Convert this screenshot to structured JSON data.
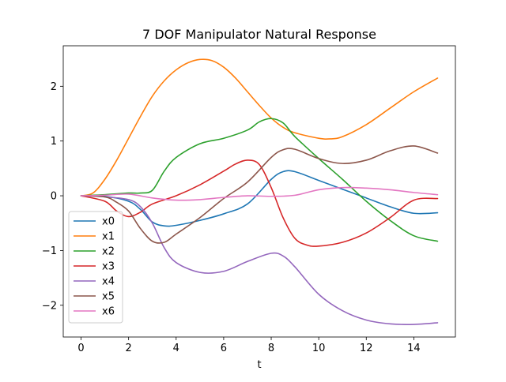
{
  "chart_data": {
    "type": "line",
    "title": "7 DOF Manipulator Natural Response",
    "xlabel": "t",
    "ylabel": "",
    "xlim": [
      -0.75,
      15.75
    ],
    "ylim": [
      -2.58,
      2.74
    ],
    "xticks": [
      0,
      2,
      4,
      6,
      8,
      10,
      12,
      14
    ],
    "yticks": [
      -2,
      -1,
      0,
      1,
      2
    ],
    "xtick_labels": [
      "0",
      "2",
      "4",
      "6",
      "8",
      "10",
      "12",
      "14"
    ],
    "ytick_labels": [
      "−2",
      "−1",
      "0",
      "1",
      "2"
    ],
    "grid": false,
    "legend_location": "lower-left",
    "series": [
      {
        "name": "x0",
        "color": "#1f77b4",
        "points": [
          [
            0,
            0
          ],
          [
            1,
            -0.01
          ],
          [
            2,
            -0.1
          ],
          [
            2.5,
            -0.25
          ],
          [
            3,
            -0.48
          ],
          [
            3.5,
            -0.55
          ],
          [
            4,
            -0.54
          ],
          [
            5,
            -0.45
          ],
          [
            6,
            -0.33
          ],
          [
            7,
            -0.15
          ],
          [
            8,
            0.3
          ],
          [
            8.5,
            0.44
          ],
          [
            9,
            0.44
          ],
          [
            10,
            0.28
          ],
          [
            11,
            0.12
          ],
          [
            12,
            -0.04
          ],
          [
            13,
            -0.2
          ],
          [
            14,
            -0.32
          ],
          [
            15,
            -0.31
          ]
        ]
      },
      {
        "name": "x1",
        "color": "#ff7f0e",
        "points": [
          [
            0,
            0
          ],
          [
            0.5,
            0.05
          ],
          [
            1,
            0.3
          ],
          [
            1.5,
            0.65
          ],
          [
            2,
            1.05
          ],
          [
            2.5,
            1.45
          ],
          [
            3,
            1.82
          ],
          [
            3.5,
            2.1
          ],
          [
            4,
            2.3
          ],
          [
            4.5,
            2.43
          ],
          [
            5,
            2.49
          ],
          [
            5.5,
            2.47
          ],
          [
            6,
            2.35
          ],
          [
            6.5,
            2.15
          ],
          [
            7,
            1.9
          ],
          [
            7.5,
            1.65
          ],
          [
            8,
            1.42
          ],
          [
            8.5,
            1.25
          ],
          [
            9,
            1.15
          ],
          [
            10,
            1.05
          ],
          [
            10.5,
            1.04
          ],
          [
            11,
            1.08
          ],
          [
            12,
            1.3
          ],
          [
            13,
            1.6
          ],
          [
            14,
            1.9
          ],
          [
            15,
            2.15
          ]
        ]
      },
      {
        "name": "x2",
        "color": "#2ca02c",
        "points": [
          [
            0,
            0
          ],
          [
            1,
            0.02
          ],
          [
            2,
            0.05
          ],
          [
            2.5,
            0.05
          ],
          [
            3,
            0.1
          ],
          [
            3.5,
            0.45
          ],
          [
            4,
            0.7
          ],
          [
            5,
            0.95
          ],
          [
            6,
            1.05
          ],
          [
            7,
            1.2
          ],
          [
            7.5,
            1.35
          ],
          [
            8,
            1.41
          ],
          [
            8.5,
            1.33
          ],
          [
            9,
            1.08
          ],
          [
            10,
            0.68
          ],
          [
            11,
            0.3
          ],
          [
            12,
            -0.1
          ],
          [
            13,
            -0.45
          ],
          [
            14,
            -0.73
          ],
          [
            15,
            -0.83
          ]
        ]
      },
      {
        "name": "x3",
        "color": "#d62728",
        "points": [
          [
            0,
            0
          ],
          [
            1,
            -0.1
          ],
          [
            1.5,
            -0.28
          ],
          [
            2,
            -0.38
          ],
          [
            2.5,
            -0.3
          ],
          [
            3,
            -0.15
          ],
          [
            4,
            0
          ],
          [
            5,
            0.2
          ],
          [
            6,
            0.45
          ],
          [
            6.5,
            0.58
          ],
          [
            7,
            0.65
          ],
          [
            7.5,
            0.57
          ],
          [
            8,
            0.15
          ],
          [
            8.5,
            -0.4
          ],
          [
            9,
            -0.78
          ],
          [
            9.5,
            -0.9
          ],
          [
            10,
            -0.92
          ],
          [
            11,
            -0.85
          ],
          [
            12,
            -0.68
          ],
          [
            13,
            -0.4
          ],
          [
            14,
            -0.08
          ],
          [
            15,
            -0.05
          ]
        ]
      },
      {
        "name": "x4",
        "color": "#9467bd",
        "points": [
          [
            0,
            0
          ],
          [
            1,
            -0.02
          ],
          [
            2,
            -0.07
          ],
          [
            2.5,
            -0.2
          ],
          [
            3,
            -0.5
          ],
          [
            3.5,
            -0.95
          ],
          [
            4,
            -1.22
          ],
          [
            5,
            -1.4
          ],
          [
            6,
            -1.38
          ],
          [
            7,
            -1.2
          ],
          [
            8,
            -1.05
          ],
          [
            8.5,
            -1.1
          ],
          [
            9,
            -1.3
          ],
          [
            10,
            -1.8
          ],
          [
            11,
            -2.1
          ],
          [
            12,
            -2.27
          ],
          [
            13,
            -2.34
          ],
          [
            14,
            -2.35
          ],
          [
            15,
            -2.32
          ]
        ]
      },
      {
        "name": "x5",
        "color": "#8c564b",
        "points": [
          [
            0,
            0
          ],
          [
            1,
            -0.02
          ],
          [
            1.5,
            -0.12
          ],
          [
            2,
            -0.28
          ],
          [
            2.5,
            -0.6
          ],
          [
            3,
            -0.83
          ],
          [
            3.5,
            -0.85
          ],
          [
            4,
            -0.7
          ],
          [
            5,
            -0.4
          ],
          [
            6,
            -0.05
          ],
          [
            7,
            0.25
          ],
          [
            8,
            0.7
          ],
          [
            8.5,
            0.84
          ],
          [
            9,
            0.85
          ],
          [
            10,
            0.68
          ],
          [
            11,
            0.59
          ],
          [
            12,
            0.65
          ],
          [
            13,
            0.82
          ],
          [
            14,
            0.91
          ],
          [
            15,
            0.78
          ]
        ]
      },
      {
        "name": "x6",
        "color": "#e377c2",
        "points": [
          [
            0,
            0
          ],
          [
            1,
            0.01
          ],
          [
            2,
            0.03
          ],
          [
            3,
            -0.04
          ],
          [
            4,
            -0.08
          ],
          [
            5,
            -0.07
          ],
          [
            6,
            -0.03
          ],
          [
            7,
            0
          ],
          [
            8,
            -0.01
          ],
          [
            9,
            0.01
          ],
          [
            10,
            0.11
          ],
          [
            11,
            0.15
          ],
          [
            12,
            0.14
          ],
          [
            13,
            0.11
          ],
          [
            14,
            0.06
          ],
          [
            15,
            0.02
          ]
        ]
      }
    ]
  }
}
